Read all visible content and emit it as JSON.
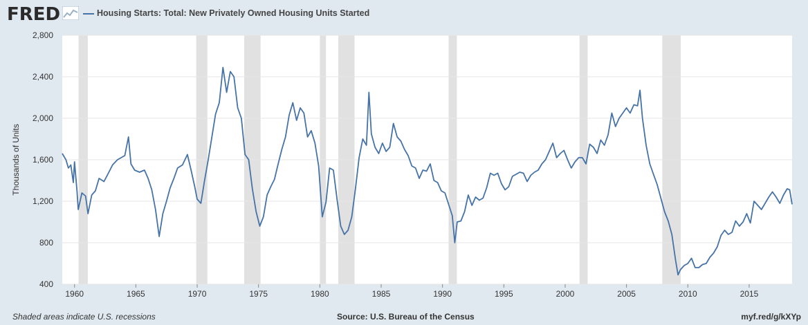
{
  "header": {
    "logo_text": "FRED",
    "logo_icon": "fred-chart-icon",
    "legend_label": "Housing Starts: Total: New Privately Owned Housing Units Started"
  },
  "footer": {
    "left": "Shaded areas indicate U.S. recessions",
    "middle": "Source: U.S. Bureau of the Census",
    "right": "myf.red/g/kXYp"
  },
  "colors": {
    "background": "#e1e9f0",
    "plot_bg": "#ffffff",
    "series": "#4572a7",
    "recession": "#e1e1e1",
    "gridline": "#e6e6e6"
  },
  "chart_data": {
    "type": "line",
    "title": "",
    "ylabel": "Thousands of Units",
    "xlabel": "",
    "ylim": [
      400,
      2800
    ],
    "xlim": [
      1959.0,
      2018.5
    ],
    "yticks": [
      400,
      800,
      1200,
      1600,
      2000,
      2400,
      2800
    ],
    "ytick_labels": [
      "400",
      "800",
      "1,200",
      "1,600",
      "2,000",
      "2,400",
      "2,800"
    ],
    "xticks": [
      1960,
      1965,
      1970,
      1975,
      1980,
      1985,
      1990,
      1995,
      2000,
      2005,
      2010,
      2015
    ],
    "xtick_labels": [
      "1960",
      "1965",
      "1970",
      "1975",
      "1980",
      "1985",
      "1990",
      "1995",
      "2000",
      "2005",
      "2010",
      "2015"
    ],
    "grid": true,
    "recessions": [
      [
        1960.33,
        1961.08
      ],
      [
        1969.92,
        1970.83
      ],
      [
        1973.83,
        1975.17
      ],
      [
        1980.0,
        1980.5
      ],
      [
        1981.5,
        1982.83
      ],
      [
        1990.5,
        1991.17
      ],
      [
        2001.17,
        2001.83
      ],
      [
        2007.92,
        2009.42
      ]
    ],
    "series": [
      {
        "name": "Housing Starts: Total: New Privately Owned Housing Units Started",
        "points": [
          [
            1959.0,
            1660
          ],
          [
            1959.3,
            1600
          ],
          [
            1959.5,
            1520
          ],
          [
            1959.7,
            1550
          ],
          [
            1959.9,
            1380
          ],
          [
            1960.0,
            1580
          ],
          [
            1960.2,
            1300
          ],
          [
            1960.3,
            1120
          ],
          [
            1960.6,
            1280
          ],
          [
            1960.9,
            1250
          ],
          [
            1961.1,
            1080
          ],
          [
            1961.4,
            1260
          ],
          [
            1961.7,
            1300
          ],
          [
            1962.0,
            1420
          ],
          [
            1962.4,
            1390
          ],
          [
            1962.8,
            1480
          ],
          [
            1963.1,
            1550
          ],
          [
            1963.5,
            1600
          ],
          [
            1963.8,
            1620
          ],
          [
            1964.1,
            1640
          ],
          [
            1964.4,
            1820
          ],
          [
            1964.6,
            1560
          ],
          [
            1964.9,
            1500
          ],
          [
            1965.3,
            1480
          ],
          [
            1965.7,
            1500
          ],
          [
            1966.0,
            1420
          ],
          [
            1966.3,
            1310
          ],
          [
            1966.6,
            1120
          ],
          [
            1966.9,
            860
          ],
          [
            1967.2,
            1080
          ],
          [
            1967.5,
            1200
          ],
          [
            1967.8,
            1330
          ],
          [
            1968.1,
            1420
          ],
          [
            1968.4,
            1520
          ],
          [
            1968.8,
            1550
          ],
          [
            1969.2,
            1650
          ],
          [
            1969.5,
            1500
          ],
          [
            1969.8,
            1340
          ],
          [
            1970.0,
            1220
          ],
          [
            1970.3,
            1180
          ],
          [
            1970.6,
            1400
          ],
          [
            1970.9,
            1600
          ],
          [
            1971.2,
            1820
          ],
          [
            1971.5,
            2040
          ],
          [
            1971.8,
            2150
          ],
          [
            1972.1,
            2490
          ],
          [
            1972.4,
            2250
          ],
          [
            1972.7,
            2450
          ],
          [
            1973.0,
            2400
          ],
          [
            1973.3,
            2100
          ],
          [
            1973.6,
            2000
          ],
          [
            1973.9,
            1650
          ],
          [
            1974.2,
            1600
          ],
          [
            1974.5,
            1320
          ],
          [
            1974.8,
            1100
          ],
          [
            1975.1,
            960
          ],
          [
            1975.4,
            1050
          ],
          [
            1975.7,
            1260
          ],
          [
            1976.0,
            1340
          ],
          [
            1976.3,
            1410
          ],
          [
            1976.6,
            1560
          ],
          [
            1976.9,
            1700
          ],
          [
            1977.2,
            1820
          ],
          [
            1977.5,
            2030
          ],
          [
            1977.8,
            2150
          ],
          [
            1978.1,
            1980
          ],
          [
            1978.4,
            2100
          ],
          [
            1978.7,
            2050
          ],
          [
            1979.0,
            1820
          ],
          [
            1979.3,
            1880
          ],
          [
            1979.6,
            1760
          ],
          [
            1979.9,
            1540
          ],
          [
            1980.2,
            1050
          ],
          [
            1980.5,
            1190
          ],
          [
            1980.8,
            1520
          ],
          [
            1981.1,
            1500
          ],
          [
            1981.4,
            1220
          ],
          [
            1981.7,
            960
          ],
          [
            1982.0,
            880
          ],
          [
            1982.3,
            920
          ],
          [
            1982.6,
            1050
          ],
          [
            1982.9,
            1320
          ],
          [
            1983.2,
            1620
          ],
          [
            1983.5,
            1800
          ],
          [
            1983.8,
            1740
          ],
          [
            1984.0,
            2250
          ],
          [
            1984.2,
            1850
          ],
          [
            1984.5,
            1720
          ],
          [
            1984.8,
            1660
          ],
          [
            1985.1,
            1760
          ],
          [
            1985.4,
            1680
          ],
          [
            1985.7,
            1720
          ],
          [
            1986.0,
            1950
          ],
          [
            1986.3,
            1820
          ],
          [
            1986.6,
            1780
          ],
          [
            1986.9,
            1700
          ],
          [
            1987.2,
            1640
          ],
          [
            1987.5,
            1540
          ],
          [
            1987.8,
            1520
          ],
          [
            1988.1,
            1420
          ],
          [
            1988.4,
            1500
          ],
          [
            1988.7,
            1490
          ],
          [
            1989.0,
            1560
          ],
          [
            1989.3,
            1400
          ],
          [
            1989.6,
            1380
          ],
          [
            1989.9,
            1300
          ],
          [
            1990.2,
            1280
          ],
          [
            1990.5,
            1170
          ],
          [
            1990.8,
            1060
          ],
          [
            1991.0,
            800
          ],
          [
            1991.2,
            1000
          ],
          [
            1991.5,
            1010
          ],
          [
            1991.8,
            1100
          ],
          [
            1992.1,
            1260
          ],
          [
            1992.4,
            1160
          ],
          [
            1992.7,
            1240
          ],
          [
            1993.0,
            1210
          ],
          [
            1993.3,
            1230
          ],
          [
            1993.6,
            1330
          ],
          [
            1993.9,
            1470
          ],
          [
            1994.2,
            1450
          ],
          [
            1994.5,
            1470
          ],
          [
            1994.8,
            1370
          ],
          [
            1995.1,
            1310
          ],
          [
            1995.4,
            1340
          ],
          [
            1995.7,
            1440
          ],
          [
            1996.0,
            1460
          ],
          [
            1996.3,
            1480
          ],
          [
            1996.6,
            1470
          ],
          [
            1996.9,
            1390
          ],
          [
            1997.2,
            1450
          ],
          [
            1997.5,
            1480
          ],
          [
            1997.8,
            1500
          ],
          [
            1998.1,
            1560
          ],
          [
            1998.4,
            1600
          ],
          [
            1998.7,
            1680
          ],
          [
            1999.0,
            1760
          ],
          [
            1999.3,
            1620
          ],
          [
            1999.6,
            1660
          ],
          [
            1999.9,
            1690
          ],
          [
            2000.2,
            1600
          ],
          [
            2000.5,
            1520
          ],
          [
            2000.8,
            1580
          ],
          [
            2001.1,
            1620
          ],
          [
            2001.4,
            1620
          ],
          [
            2001.7,
            1560
          ],
          [
            2002.0,
            1750
          ],
          [
            2002.3,
            1720
          ],
          [
            2002.6,
            1660
          ],
          [
            2002.9,
            1790
          ],
          [
            2003.2,
            1740
          ],
          [
            2003.5,
            1840
          ],
          [
            2003.8,
            2050
          ],
          [
            2004.1,
            1920
          ],
          [
            2004.4,
            2000
          ],
          [
            2004.7,
            2050
          ],
          [
            2005.0,
            2100
          ],
          [
            2005.3,
            2050
          ],
          [
            2005.6,
            2130
          ],
          [
            2005.9,
            2120
          ],
          [
            2006.1,
            2270
          ],
          [
            2006.3,
            2000
          ],
          [
            2006.6,
            1740
          ],
          [
            2006.9,
            1560
          ],
          [
            2007.2,
            1460
          ],
          [
            2007.5,
            1360
          ],
          [
            2007.8,
            1230
          ],
          [
            2008.1,
            1100
          ],
          [
            2008.4,
            1010
          ],
          [
            2008.7,
            880
          ],
          [
            2009.0,
            630
          ],
          [
            2009.2,
            490
          ],
          [
            2009.4,
            540
          ],
          [
            2009.7,
            580
          ],
          [
            2010.0,
            600
          ],
          [
            2010.3,
            650
          ],
          [
            2010.6,
            560
          ],
          [
            2010.9,
            560
          ],
          [
            2011.2,
            590
          ],
          [
            2011.5,
            600
          ],
          [
            2011.8,
            660
          ],
          [
            2012.1,
            700
          ],
          [
            2012.4,
            760
          ],
          [
            2012.7,
            870
          ],
          [
            2013.0,
            920
          ],
          [
            2013.3,
            880
          ],
          [
            2013.6,
            900
          ],
          [
            2013.9,
            1010
          ],
          [
            2014.2,
            960
          ],
          [
            2014.5,
            1000
          ],
          [
            2014.8,
            1080
          ],
          [
            2015.1,
            990
          ],
          [
            2015.4,
            1200
          ],
          [
            2015.7,
            1160
          ],
          [
            2016.0,
            1120
          ],
          [
            2016.3,
            1180
          ],
          [
            2016.6,
            1240
          ],
          [
            2016.9,
            1290
          ],
          [
            2017.2,
            1240
          ],
          [
            2017.5,
            1180
          ],
          [
            2017.8,
            1260
          ],
          [
            2018.1,
            1320
          ],
          [
            2018.3,
            1310
          ],
          [
            2018.5,
            1170
          ]
        ]
      }
    ]
  }
}
